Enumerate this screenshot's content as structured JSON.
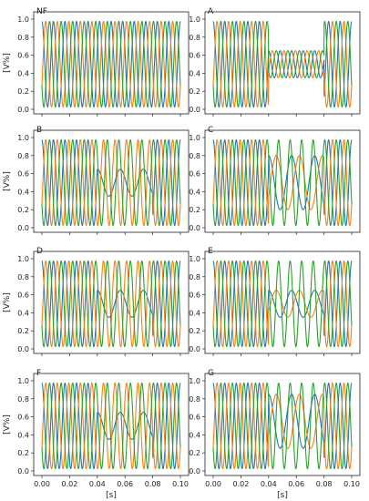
{
  "figure": {
    "ylabel": "[V%]",
    "xlabel": "[s]"
  },
  "series_colors": [
    "#1f77b4",
    "#ff7f0e",
    "#2ca02c"
  ],
  "chart_data": [
    {
      "type": "line",
      "panel": "NF",
      "title": "NF",
      "ylim": [
        0,
        1
      ],
      "xlim": [
        0,
        0.1
      ],
      "x_ticks": [
        0.0,
        0.02,
        0.04,
        0.06,
        0.08,
        0.1
      ],
      "y_ticks": [
        0.0,
        0.2,
        0.4,
        0.6,
        0.8,
        1.0
      ],
      "base_frequency_hz": 120,
      "fault_window_s": [],
      "fault_phase_offsets": [],
      "fault_phase_amplitude": 0,
      "fault_phase_frequency_hz": 0
    },
    {
      "type": "line",
      "panel": "A",
      "title": "A",
      "ylim": [
        0,
        1
      ],
      "xlim": [
        0,
        0.1
      ],
      "x_ticks": [
        0.0,
        0.02,
        0.04,
        0.06,
        0.08,
        0.1
      ],
      "y_ticks": [
        0.0,
        0.2,
        0.4,
        0.6,
        0.8,
        1.0
      ],
      "base_frequency_hz": 120,
      "fault_window_s": [
        0.04,
        0.08
      ],
      "fault_phase_offsets": [
        0.5,
        0.5,
        0.5
      ],
      "fault_phase_amplitude": 0.15,
      "fault_phase_frequency_hz": 120
    },
    {
      "type": "line",
      "panel": "B",
      "title": "B",
      "ylim": [
        0,
        1
      ],
      "xlim": [
        0,
        0.1
      ],
      "x_ticks": [
        0.0,
        0.02,
        0.04,
        0.06,
        0.08,
        0.1
      ],
      "y_ticks": [
        0.0,
        0.2,
        0.4,
        0.6,
        0.8,
        1.0
      ],
      "base_frequency_hz": 120,
      "fault_window_s": [
        0.04,
        0.08
      ],
      "fault_phase_offsets": [
        0.5,
        null,
        null
      ],
      "fault_phase_amplitude": 0.15,
      "fault_phase_frequency_hz": 60
    },
    {
      "type": "line",
      "panel": "C",
      "title": "C",
      "ylim": [
        0,
        1
      ],
      "xlim": [
        0,
        0.1
      ],
      "x_ticks": [
        0.0,
        0.02,
        0.04,
        0.06,
        0.08,
        0.1
      ],
      "y_ticks": [
        0.0,
        0.2,
        0.4,
        0.6,
        0.8,
        1.0
      ],
      "base_frequency_hz": 120,
      "fault_window_s": [
        0.04,
        0.08
      ],
      "fault_phase_offsets": [
        0.5,
        0.5,
        null
      ],
      "fault_phase_amplitude": 0.3,
      "fault_phase_frequency_hz": 60
    },
    {
      "type": "line",
      "panel": "D",
      "title": "D",
      "ylim": [
        0,
        1
      ],
      "xlim": [
        0,
        0.1
      ],
      "x_ticks": [
        0.0,
        0.02,
        0.04,
        0.06,
        0.08,
        0.1
      ],
      "y_ticks": [
        0.0,
        0.2,
        0.4,
        0.6,
        0.8,
        1.0
      ],
      "base_frequency_hz": 120,
      "fault_window_s": [
        0.04,
        0.08
      ],
      "fault_phase_offsets": [
        0.5,
        null,
        null
      ],
      "fault_phase_amplitude": 0.15,
      "fault_phase_frequency_hz": 60
    },
    {
      "type": "line",
      "panel": "E",
      "title": "E",
      "ylim": [
        0,
        1
      ],
      "xlim": [
        0,
        0.1
      ],
      "x_ticks": [
        0.0,
        0.02,
        0.04,
        0.06,
        0.08,
        0.1
      ],
      "y_ticks": [
        0.0,
        0.2,
        0.4,
        0.6,
        0.8,
        1.0
      ],
      "base_frequency_hz": 120,
      "fault_window_s": [
        0.04,
        0.08
      ],
      "fault_phase_offsets": [
        0.5,
        0.5,
        null
      ],
      "fault_phase_amplitude": 0.15,
      "fault_phase_frequency_hz": 60
    },
    {
      "type": "line",
      "panel": "F",
      "title": "F",
      "ylim": [
        0,
        1
      ],
      "xlim": [
        0,
        0.1
      ],
      "x_ticks": [
        0.0,
        0.02,
        0.04,
        0.06,
        0.08,
        0.1
      ],
      "y_ticks": [
        0.0,
        0.2,
        0.4,
        0.6,
        0.8,
        1.0
      ],
      "base_frequency_hz": 120,
      "fault_window_s": [
        0.04,
        0.08
      ],
      "fault_phase_offsets": [
        0.5,
        null,
        null
      ],
      "fault_phase_amplitude": 0.15,
      "fault_phase_frequency_hz": 60
    },
    {
      "type": "line",
      "panel": "G",
      "title": "G",
      "ylim": [
        0,
        1
      ],
      "xlim": [
        0,
        0.1
      ],
      "x_ticks": [
        0.0,
        0.02,
        0.04,
        0.06,
        0.08,
        0.1
      ],
      "y_ticks": [
        0.0,
        0.2,
        0.4,
        0.6,
        0.8,
        1.0
      ],
      "base_frequency_hz": 120,
      "fault_window_s": [
        0.04,
        0.08
      ],
      "fault_phase_offsets": [
        0.55,
        0.55,
        null
      ],
      "fault_phase_amplitude": 0.3,
      "fault_phase_frequency_hz": 60
    }
  ]
}
